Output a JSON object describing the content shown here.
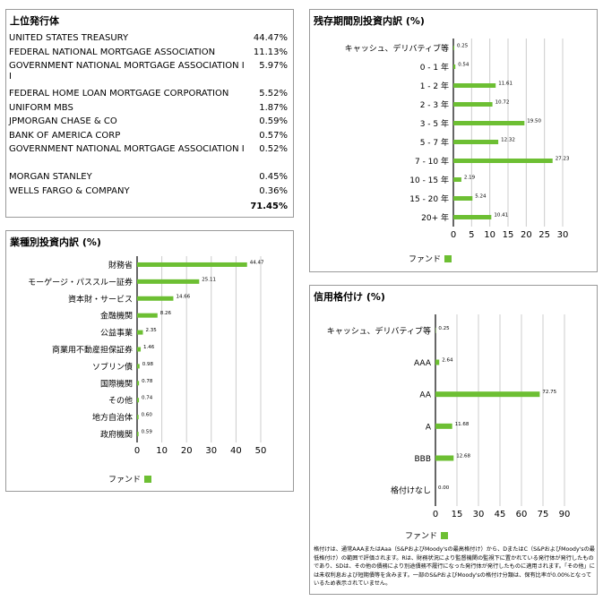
{
  "colors": {
    "bar": "#6dbf33",
    "grid": "#cccccc",
    "axis": "#000000",
    "border": "#9a9a9a"
  },
  "holdings": {
    "title": "上位発行体",
    "rows": [
      {
        "name": "UNITED STATES TREASURY",
        "value": "44.47%"
      },
      {
        "name": "FEDERAL NATIONAL MORTGAGE ASSOCIATION",
        "value": "11.13%"
      },
      {
        "name": "GOVERNMENT NATIONAL MORTGAGE ASSOCIATION II",
        "value": "5.97%"
      },
      {
        "name": "FEDERAL HOME LOAN MORTGAGE CORPORATION",
        "value": "5.52%"
      },
      {
        "name": "UNIFORM MBS",
        "value": "1.87%"
      },
      {
        "name": "JPMORGAN CHASE & CO",
        "value": "0.59%"
      },
      {
        "name": "BANK OF AMERICA CORP",
        "value": "0.57%"
      },
      {
        "name": "GOVERNMENT NATIONAL MORTGAGE ASSOCIATION I",
        "value": "0.52%"
      },
      {
        "name": "MORGAN STANLEY",
        "value": "0.45%"
      },
      {
        "name": "WELLS FARGO & COMPANY",
        "value": "0.36%"
      }
    ],
    "total": "71.45%"
  },
  "chart_data": [
    {
      "id": "maturity",
      "type": "bar",
      "orientation": "horizontal",
      "title": "残存期間別投資内訳 (%)",
      "categories": [
        "キャッシュ、デリバティブ等",
        "0 - 1 年",
        "1 - 2 年",
        "2 - 3 年",
        "3 - 5 年",
        "5 - 7 年",
        "7 - 10 年",
        "10 - 15 年",
        "15 - 20 年",
        "20+ 年"
      ],
      "series": [
        {
          "name": "ファンド",
          "values": [
            0.25,
            0.54,
            11.61,
            10.72,
            19.5,
            12.32,
            27.23,
            2.19,
            5.24,
            10.41
          ]
        }
      ],
      "value_labels": [
        "0.25",
        "0.54",
        "11.61",
        "10.72",
        "19.50",
        "12.32",
        "27.23",
        "2.19",
        "5.24",
        "10.41"
      ],
      "xticks": [
        0,
        5,
        10,
        15,
        20,
        25,
        30
      ],
      "xlim": [
        0,
        30
      ],
      "grid": true,
      "legend": "bottom-left"
    },
    {
      "id": "sector",
      "type": "bar",
      "orientation": "horizontal",
      "title": "業種別投資内訳 (%)",
      "categories": [
        "財務省",
        "モーゲージ・パススルー証券",
        "資本財・サービス",
        "金融機関",
        "公益事業",
        "商業用不動産担保証券",
        "ソブリン債",
        "国際機関",
        "その他",
        "地方自治体",
        "政府機関"
      ],
      "series": [
        {
          "name": "ファンド",
          "values": [
            44.47,
            25.11,
            14.66,
            8.26,
            2.35,
            1.46,
            0.98,
            0.78,
            0.74,
            0.6,
            0.59
          ]
        }
      ],
      "value_labels": [
        "44.47",
        "25.11",
        "14.66",
        "8.26",
        "2.35",
        "1.46",
        "0.98",
        "0.78",
        "0.74",
        "0.60",
        "0.59"
      ],
      "xticks": [
        0,
        10,
        20,
        30,
        40,
        50
      ],
      "xlim": [
        0,
        50
      ],
      "grid": true,
      "legend": "bottom-left"
    },
    {
      "id": "credit",
      "type": "bar",
      "orientation": "horizontal",
      "title": "信用格付け (%)",
      "categories": [
        "キャッシュ、デリバティブ等",
        "AAA",
        "AA",
        "A",
        "BBB",
        "格付けなし"
      ],
      "series": [
        {
          "name": "ファンド",
          "values": [
            0.25,
            2.64,
            72.75,
            11.68,
            12.68,
            0.0
          ]
        }
      ],
      "value_labels": [
        "0.25",
        "2.64",
        "72.75",
        "11.68",
        "12.68",
        "0.00"
      ],
      "xticks": [
        0,
        15,
        30,
        45,
        60,
        75,
        90
      ],
      "xlim": [
        0,
        90
      ],
      "grid": true,
      "legend": "bottom-left"
    }
  ],
  "footnote": "格付けは、通常AAAまたはAaa（S&PおよびMoody'sの最高格付け）から、DまたはC（S&PおよびMoody'sの最低格付け）の範囲で評価されます。Rは、財務状況により監督機関の監視下に置かれている発行体が発行したものであり、SDは、その他の債務により別途債務不履行になった発行体が発行したものに適用されます。「その他」には未収利息および短期債等を含みます。一部のS&PおよびMoody'sの格付け分類は、保有比率が0.00%となっているため表示されていません。"
}
